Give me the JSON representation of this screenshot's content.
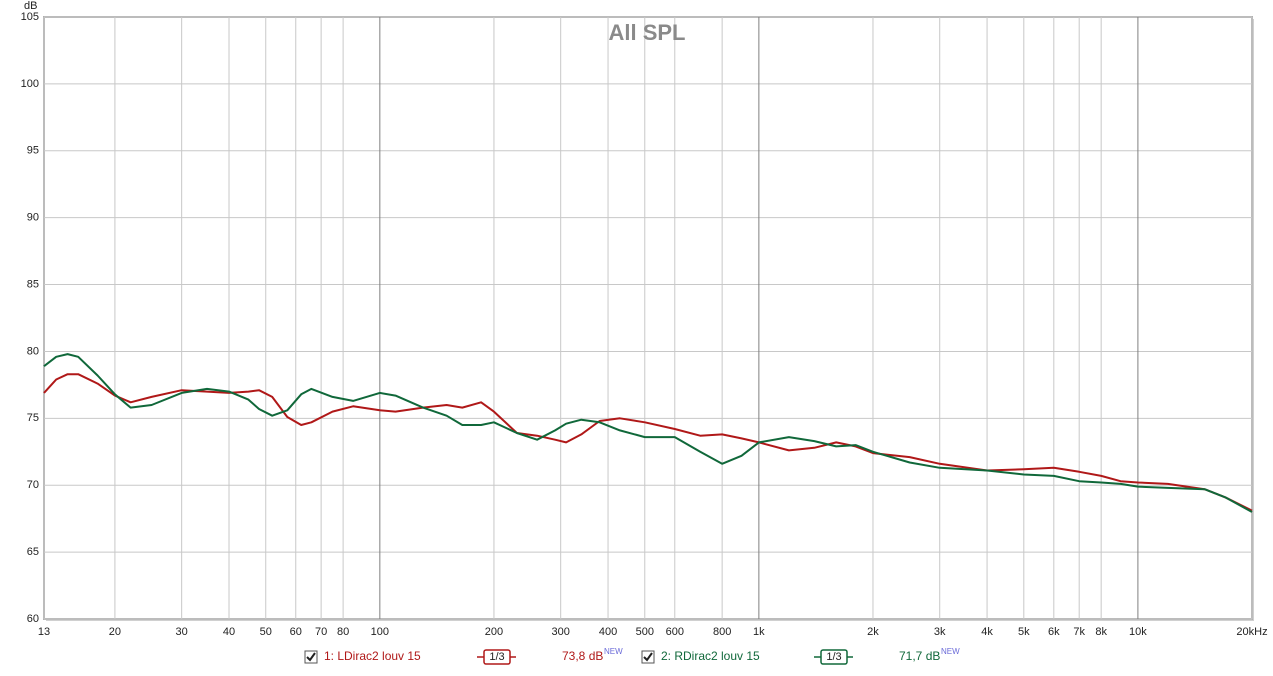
{
  "chart_data": {
    "type": "line",
    "title": "All SPL",
    "y_label": "dB",
    "log_x": true,
    "grid": true,
    "xlim": [
      13,
      20000
    ],
    "ylim": [
      60,
      105
    ],
    "xticks": [
      13,
      20,
      30,
      40,
      50,
      60,
      70,
      80,
      100,
      200,
      300,
      400,
      500,
      600,
      800,
      {
        "value": 1000,
        "label": "1k"
      },
      {
        "value": 2000,
        "label": "2k"
      },
      {
        "value": 3000,
        "label": "3k"
      },
      {
        "value": 4000,
        "label": "4k"
      },
      {
        "value": 5000,
        "label": "5k"
      },
      {
        "value": 6000,
        "label": "6k"
      },
      {
        "value": 7000,
        "label": "7k"
      },
      {
        "value": 8000,
        "label": "8k"
      },
      {
        "value": 10000,
        "label": "10k"
      },
      {
        "value": 20000,
        "label": "20kHz"
      }
    ],
    "yticks": [
      60,
      65,
      70,
      75,
      80,
      85,
      90,
      95,
      100,
      105
    ],
    "x": [
      13,
      14,
      15,
      16,
      18,
      20,
      22,
      25,
      30,
      35,
      40,
      45,
      48,
      52,
      57,
      62,
      66,
      75,
      85,
      100,
      110,
      130,
      150,
      165,
      185,
      200,
      230,
      260,
      290,
      310,
      340,
      380,
      430,
      500,
      600,
      700,
      800,
      900,
      1000,
      1200,
      1400,
      1600,
      1800,
      2000,
      2500,
      3000,
      4000,
      5000,
      6000,
      7000,
      8000,
      9000,
      10000,
      12000,
      15000,
      17000,
      20000
    ],
    "series": [
      {
        "name": "1: LDirac2 louv 15",
        "color": "#b01818",
        "smoothing": "1/3",
        "level": "73,8 dB",
        "badge": "NEW",
        "values": [
          76.9,
          77.9,
          78.3,
          78.3,
          77.6,
          76.7,
          76.2,
          76.6,
          77.1,
          77.0,
          76.9,
          77.0,
          77.1,
          76.6,
          75.1,
          74.5,
          74.7,
          75.5,
          75.9,
          75.6,
          75.5,
          75.8,
          76.0,
          75.8,
          76.2,
          75.5,
          73.9,
          73.7,
          73.4,
          73.2,
          73.8,
          74.8,
          75.0,
          74.7,
          74.2,
          73.7,
          73.8,
          73.5,
          73.2,
          72.6,
          72.8,
          73.2,
          72.9,
          72.4,
          72.1,
          71.6,
          71.1,
          71.2,
          71.3,
          71.0,
          70.7,
          70.3,
          70.2,
          70.1,
          69.7,
          69.1,
          68.1
        ]
      },
      {
        "name": "2: RDirac2 louv 15",
        "color": "#10683a",
        "smoothing": "1/3",
        "level": "71,7 dB",
        "badge": "NEW",
        "values": [
          78.9,
          79.6,
          79.8,
          79.6,
          78.2,
          76.8,
          75.8,
          76.0,
          76.9,
          77.2,
          77.0,
          76.4,
          75.7,
          75.2,
          75.6,
          76.8,
          77.2,
          76.6,
          76.3,
          76.9,
          76.7,
          75.8,
          75.2,
          74.5,
          74.5,
          74.7,
          73.9,
          73.4,
          74.1,
          74.6,
          74.9,
          74.7,
          74.1,
          73.6,
          73.6,
          72.5,
          71.6,
          72.2,
          73.2,
          73.6,
          73.3,
          72.9,
          73.0,
          72.5,
          71.7,
          71.3,
          71.1,
          70.8,
          70.7,
          70.3,
          70.2,
          70.1,
          69.9,
          69.8,
          69.7,
          69.1,
          68.0
        ]
      }
    ]
  }
}
